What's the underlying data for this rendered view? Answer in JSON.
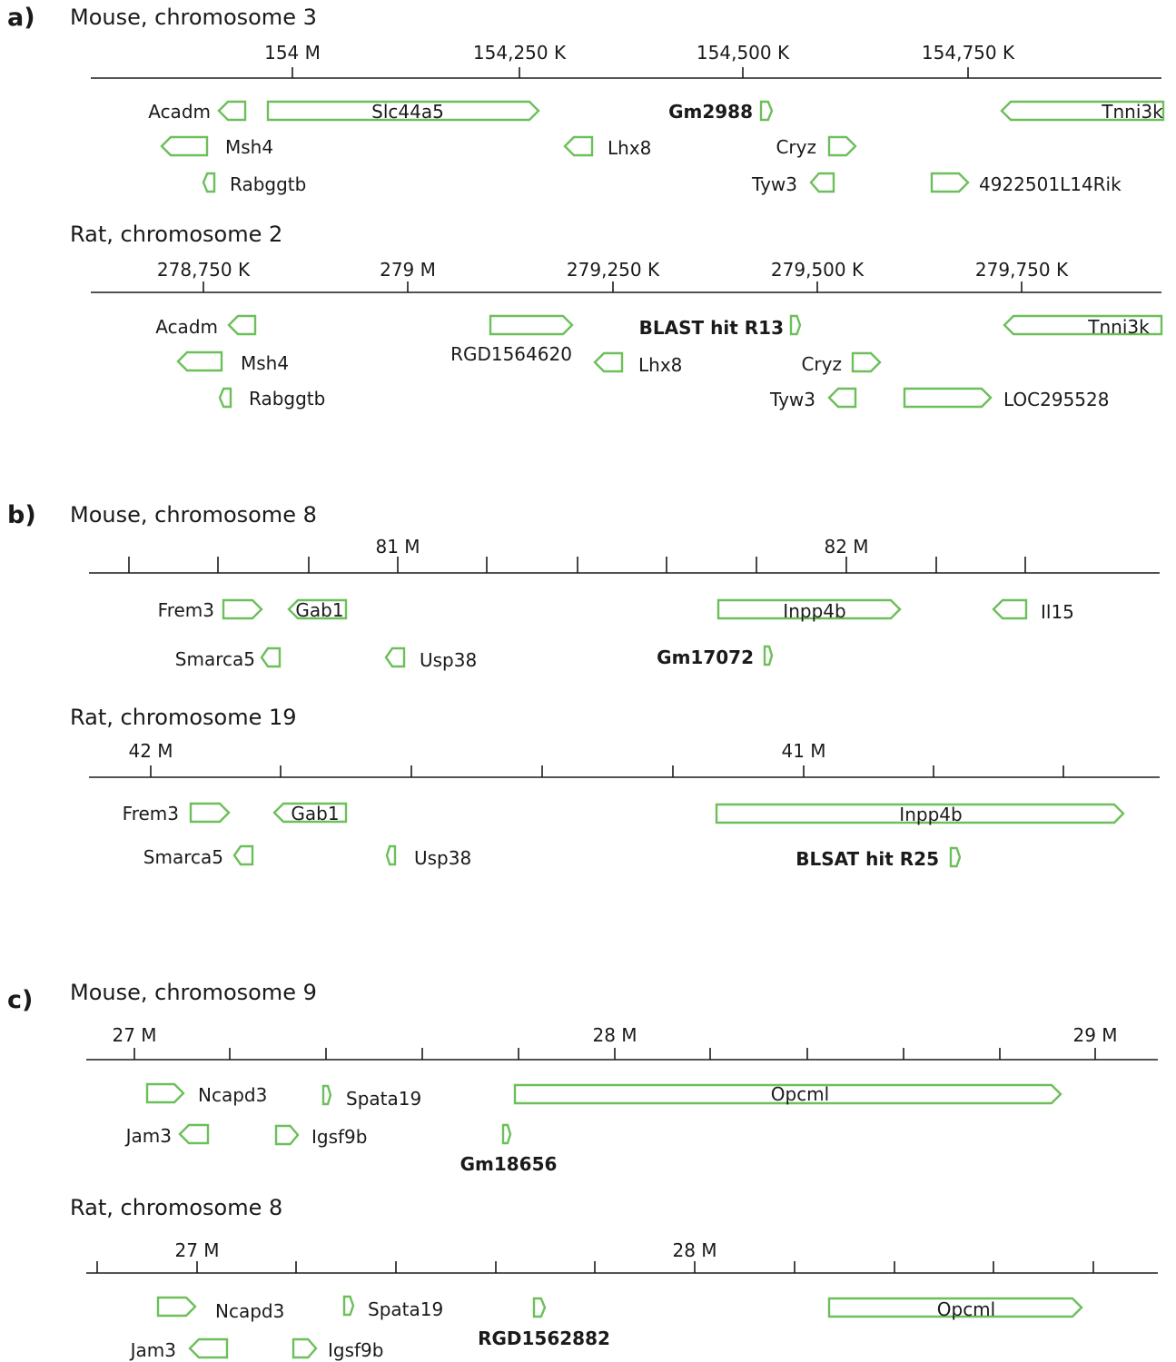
{
  "colors": {
    "gene_outline": "#6cbf5a",
    "axis": "#1a1a1a",
    "text": "#1a1a1a",
    "background": "#ffffff"
  },
  "panels": [
    {
      "id": "a",
      "letter": "a)",
      "tracks": [
        {
          "title": "Mouse, chromosome 3",
          "ticks": [
            {
              "label": "154 M"
            },
            {
              "label": "154,250 K"
            },
            {
              "label": "154,500 K"
            },
            {
              "label": "154,750 K"
            }
          ],
          "genes": [
            {
              "name": "Acadm",
              "strand": "-"
            },
            {
              "name": "Slc44a5",
              "strand": "+"
            },
            {
              "name": "Gm2988",
              "strand": "+",
              "bold": true
            },
            {
              "name": "Tnni3k",
              "strand": "-"
            },
            {
              "name": "Msh4",
              "strand": "-"
            },
            {
              "name": "Lhx8",
              "strand": "-"
            },
            {
              "name": "Cryz",
              "strand": "+"
            },
            {
              "name": "Rabggtb",
              "strand": "-"
            },
            {
              "name": "Tyw3",
              "strand": "-"
            },
            {
              "name": "4922501L14Rik",
              "strand": "+"
            }
          ]
        },
        {
          "title": "Rat, chromosome 2",
          "ticks": [
            {
              "label": "278,750 K"
            },
            {
              "label": "279 M"
            },
            {
              "label": "279,250 K"
            },
            {
              "label": "279,500 K"
            },
            {
              "label": "279,750 K"
            }
          ],
          "genes": [
            {
              "name": "Acadm",
              "strand": "-"
            },
            {
              "name": "RGD1564620",
              "strand": "+"
            },
            {
              "name": "BLAST hit R13",
              "strand": "+",
              "bold": true
            },
            {
              "name": "Tnni3k",
              "strand": "-"
            },
            {
              "name": "Msh4",
              "strand": "-"
            },
            {
              "name": "Lhx8",
              "strand": "-"
            },
            {
              "name": "Cryz",
              "strand": "+"
            },
            {
              "name": "Rabggtb",
              "strand": "-"
            },
            {
              "name": "Tyw3",
              "strand": "-"
            },
            {
              "name": "LOC295528",
              "strand": "+"
            }
          ]
        }
      ]
    },
    {
      "id": "b",
      "letter": "b)",
      "tracks": [
        {
          "title": "Mouse, chromosome 8",
          "ticks": [
            {
              "label": ""
            },
            {
              "label": ""
            },
            {
              "label": ""
            },
            {
              "label": "81 M"
            },
            {
              "label": ""
            },
            {
              "label": ""
            },
            {
              "label": ""
            },
            {
              "label": ""
            },
            {
              "label": "82 M"
            },
            {
              "label": ""
            },
            {
              "label": ""
            }
          ],
          "genes": [
            {
              "name": "Frem3",
              "strand": "+"
            },
            {
              "name": "Gab1",
              "strand": "-"
            },
            {
              "name": "Inpp4b",
              "strand": "+"
            },
            {
              "name": "Il15",
              "strand": "-"
            },
            {
              "name": "Smarca5",
              "strand": "-"
            },
            {
              "name": "Usp38",
              "strand": "-"
            },
            {
              "name": "Gm17072",
              "strand": "+",
              "bold": true
            }
          ]
        },
        {
          "title": "Rat, chromosome 19",
          "ticks": [
            {
              "label": "42 M"
            },
            {
              "label": ""
            },
            {
              "label": ""
            },
            {
              "label": ""
            },
            {
              "label": ""
            },
            {
              "label": "41 M"
            },
            {
              "label": ""
            },
            {
              "label": ""
            }
          ],
          "genes": [
            {
              "name": "Frem3",
              "strand": "+"
            },
            {
              "name": "Gab1",
              "strand": "-"
            },
            {
              "name": "Inpp4b",
              "strand": "+"
            },
            {
              "name": "Smarca5",
              "strand": "-"
            },
            {
              "name": "Usp38",
              "strand": "-"
            },
            {
              "name": "BLSAT hit R25",
              "strand": "+",
              "bold": true
            }
          ]
        }
      ]
    },
    {
      "id": "c",
      "letter": "c)",
      "tracks": [
        {
          "title": "Mouse, chromosome 9",
          "ticks": [
            {
              "label": "27 M"
            },
            {
              "label": ""
            },
            {
              "label": ""
            },
            {
              "label": ""
            },
            {
              "label": ""
            },
            {
              "label": "28 M"
            },
            {
              "label": ""
            },
            {
              "label": ""
            },
            {
              "label": ""
            },
            {
              "label": ""
            },
            {
              "label": "29 M"
            }
          ],
          "genes": [
            {
              "name": "Ncapd3",
              "strand": "+"
            },
            {
              "name": "Spata19",
              "strand": "+"
            },
            {
              "name": "Opcml",
              "strand": "+"
            },
            {
              "name": "Jam3",
              "strand": "-"
            },
            {
              "name": "Igsf9b",
              "strand": "+"
            },
            {
              "name": "Gm18656",
              "strand": "+",
              "bold": true
            }
          ]
        },
        {
          "title": "Rat, chromosome 8",
          "ticks": [
            {
              "label": ""
            },
            {
              "label": "27 M"
            },
            {
              "label": ""
            },
            {
              "label": ""
            },
            {
              "label": ""
            },
            {
              "label": ""
            },
            {
              "label": "28 M"
            },
            {
              "label": ""
            },
            {
              "label": ""
            },
            {
              "label": ""
            },
            {
              "label": ""
            }
          ],
          "genes": [
            {
              "name": "Ncapd3",
              "strand": "+"
            },
            {
              "name": "Spata19",
              "strand": "+"
            },
            {
              "name": "RGD1562882",
              "strand": "+",
              "bold": true
            },
            {
              "name": "Opcml",
              "strand": "+"
            },
            {
              "name": "Jam3",
              "strand": "-"
            },
            {
              "name": "Igsf9b",
              "strand": "+"
            }
          ]
        }
      ]
    }
  ]
}
